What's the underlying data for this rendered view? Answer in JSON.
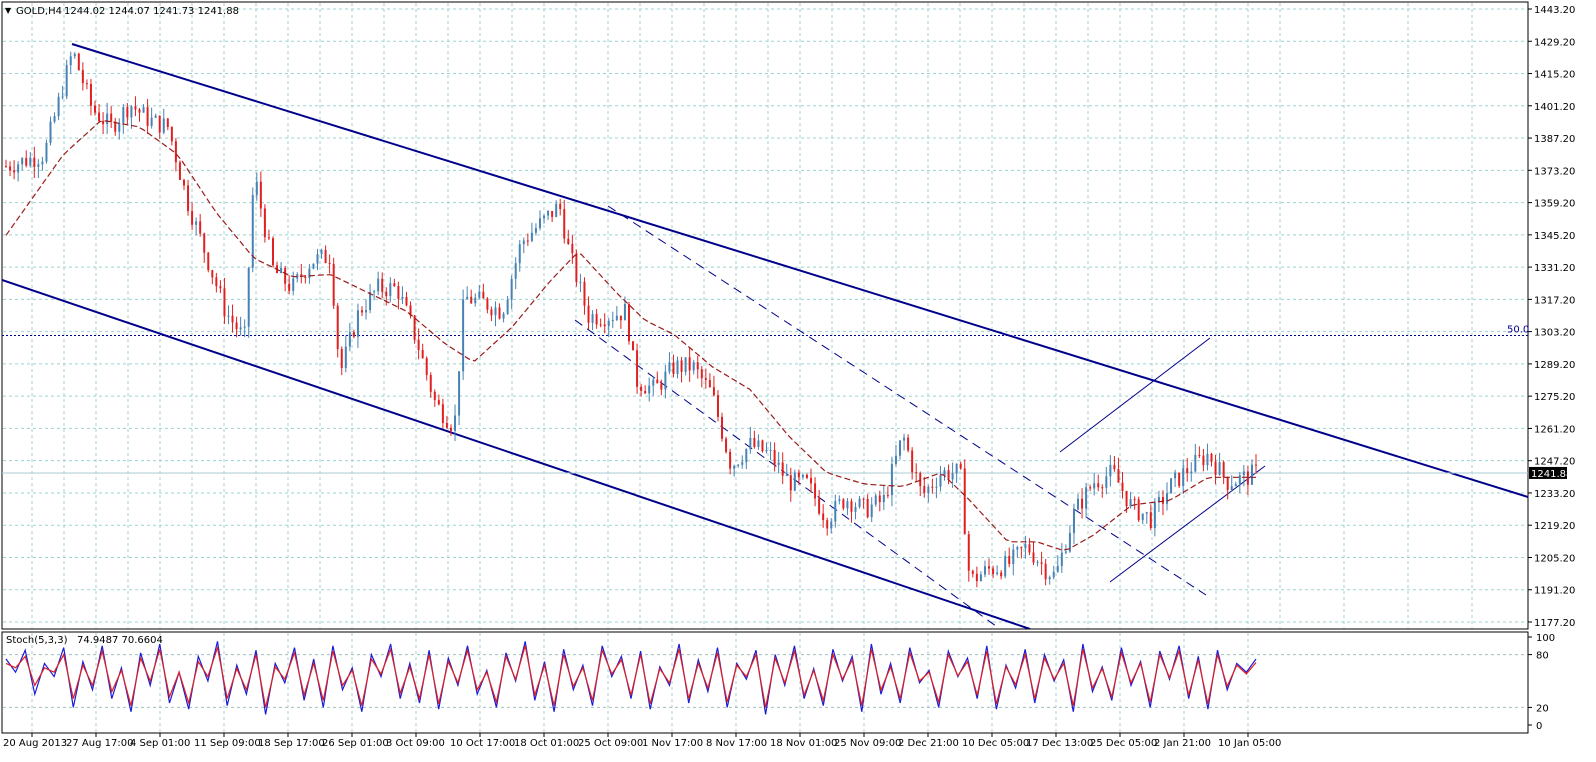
{
  "chart_data": [
    {
      "type": "candlestick",
      "title": "GOLD,H4",
      "ohlc_values": "1244.02 1244.07 1241.73 1241.88",
      "current_price": 1241.88,
      "current_price_label": "1241.88",
      "ylim": [
        1177.2,
        1443.2
      ],
      "y_ticks": [
        "1443.20",
        "1429.20",
        "1415.20",
        "1401.20",
        "1387.20",
        "1373.20",
        "1359.20",
        "1345.20",
        "1331.20",
        "1317.20",
        "1303.20",
        "1289.20",
        "1275.20",
        "1261.20",
        "1247.20",
        "1233.20",
        "1219.20",
        "1205.20",
        "1191.20",
        "1177.20"
      ],
      "x_ticks": [
        "20 Aug 2013",
        "27 Aug 17:00",
        "4 Sep 01:00",
        "11 Sep 09:00",
        "18 Sep 17:00",
        "26 Sep 01:00",
        "3 Oct 09:00",
        "10 Oct 17:00",
        "18 Oct 01:00",
        "25 Oct 09:00",
        "1 Nov 17:00",
        "8 Nov 17:00",
        "18 Nov 01:00",
        "25 Nov 09:00",
        "2 Dec 21:00",
        "10 Dec 05:00",
        "17 Dec 13:00",
        "25 Dec 05:00",
        "2 Jan 21:00",
        "10 Jan 05:00"
      ],
      "fib_level": {
        "label": "50.0",
        "price": 1301.5
      },
      "grid": true,
      "colors": {
        "bull": "#4682b4",
        "bear": "#e02020",
        "ma": "#9b1b1b",
        "channel": "#00008b",
        "grid": "#9fd2d2"
      },
      "price_path": [
        [
          0,
          1375
        ],
        [
          4,
          1380
        ],
        [
          7,
          1425
        ],
        [
          9,
          1400
        ],
        [
          11,
          1392
        ],
        [
          13,
          1402
        ],
        [
          15,
          1395
        ],
        [
          17,
          1392
        ],
        [
          19,
          1360
        ],
        [
          21,
          1336
        ],
        [
          23,
          1312
        ],
        [
          25,
          1300
        ],
        [
          26,
          1372
        ],
        [
          28,
          1330
        ],
        [
          30,
          1322
        ],
        [
          32,
          1334
        ],
        [
          34,
          1336
        ],
        [
          35,
          1285
        ],
        [
          37,
          1312
        ],
        [
          39,
          1322
        ],
        [
          41,
          1322
        ],
        [
          43,
          1300
        ],
        [
          45,
          1272
        ],
        [
          47,
          1262
        ],
        [
          48,
          1318
        ],
        [
          50,
          1316
        ],
        [
          52,
          1312
        ],
        [
          54,
          1342
        ],
        [
          56,
          1350
        ],
        [
          58,
          1358
        ],
        [
          59,
          1338
        ],
        [
          61,
          1310
        ],
        [
          63,
          1310
        ],
        [
          65,
          1312
        ],
        [
          66,
          1282
        ],
        [
          68,
          1278
        ],
        [
          70,
          1288
        ],
        [
          72,
          1288
        ],
        [
          74,
          1276
        ],
        [
          76,
          1245
        ],
        [
          78,
          1254
        ],
        [
          80,
          1250
        ],
        [
          82,
          1238
        ],
        [
          84,
          1237
        ],
        [
          86,
          1222
        ],
        [
          88,
          1231
        ],
        [
          90,
          1226
        ],
        [
          92,
          1230
        ],
        [
          94,
          1258
        ],
        [
          96,
          1232
        ],
        [
          98,
          1242
        ],
        [
          100,
          1242
        ],
        [
          101,
          1195
        ],
        [
          103,
          1200
        ],
        [
          105,
          1202
        ],
        [
          107,
          1210
        ],
        [
          109,
          1200
        ],
        [
          110,
          1197
        ],
        [
          112,
          1225
        ],
        [
          114,
          1238
        ],
        [
          116,
          1242
        ],
        [
          118,
          1227
        ],
        [
          120,
          1222
        ],
        [
          122,
          1236
        ],
        [
          124,
          1244
        ],
        [
          126,
          1250
        ],
        [
          128,
          1238
        ],
        [
          130,
          1240
        ],
        [
          131,
          1242
        ]
      ],
      "moving_average": [
        [
          0,
          1345
        ],
        [
          6,
          1380
        ],
        [
          10,
          1395
        ],
        [
          14,
          1392
        ],
        [
          18,
          1380
        ],
        [
          22,
          1355
        ],
        [
          26,
          1335
        ],
        [
          30,
          1327
        ],
        [
          34,
          1328
        ],
        [
          38,
          1320
        ],
        [
          42,
          1312
        ],
        [
          46,
          1298
        ],
        [
          49,
          1290
        ],
        [
          53,
          1305
        ],
        [
          57,
          1325
        ],
        [
          60,
          1338
        ],
        [
          64,
          1320
        ],
        [
          67,
          1308
        ],
        [
          70,
          1302
        ],
        [
          74,
          1288
        ],
        [
          78,
          1278
        ],
        [
          82,
          1258
        ],
        [
          86,
          1242
        ],
        [
          90,
          1237
        ],
        [
          94,
          1236
        ],
        [
          98,
          1242
        ],
        [
          101,
          1230
        ],
        [
          105,
          1212
        ],
        [
          108,
          1212
        ],
        [
          111,
          1208
        ],
        [
          114,
          1215
        ],
        [
          118,
          1228
        ],
        [
          122,
          1230
        ],
        [
          126,
          1240
        ],
        [
          131,
          1240
        ]
      ]
    },
    {
      "type": "line",
      "title": "Stoch(5,3,3)",
      "values_label": "74.9487 70.6604",
      "ylim": [
        0,
        100
      ],
      "y_ticks": [
        "100",
        "80",
        "20",
        "0"
      ],
      "levels": [
        20,
        80
      ],
      "series": [
        {
          "color": "#1c1cd6",
          "values": [
            75,
            60,
            85,
            35,
            70,
            55,
            88,
            20,
            72,
            40,
            90,
            30,
            65,
            15,
            82,
            45,
            92,
            25,
            60,
            18,
            78,
            50,
            95,
            22,
            68,
            35,
            85,
            12,
            70,
            48,
            88,
            28,
            75,
            20,
            90,
            40,
            65,
            15,
            80,
            55,
            92,
            30,
            70,
            25,
            85,
            18,
            76,
            45,
            90,
            35,
            62,
            20,
            82,
            50,
            95,
            28,
            72,
            15,
            86,
            40,
            68,
            22,
            90,
            55,
            78,
            30,
            84,
            18,
            66,
            45,
            92,
            25,
            74,
            38,
            88,
            20,
            70,
            52,
            85,
            12,
            80,
            45,
            90,
            30,
            64,
            22,
            86,
            50,
            78,
            15,
            92,
            35,
            70,
            25,
            88,
            48,
            62,
            20,
            84,
            55,
            76,
            30,
            90,
            18,
            68,
            42,
            86,
            25,
            80,
            50,
            74,
            15,
            92,
            38,
            66,
            28,
            88,
            45,
            72,
            20,
            84,
            52,
            90,
            30,
            78,
            18,
            85,
            40,
            70,
            60,
            75
          ]
        },
        {
          "color": "#e02020",
          "values": [
            70,
            65,
            78,
            45,
            65,
            60,
            80,
            30,
            68,
            45,
            84,
            38,
            62,
            22,
            76,
            50,
            86,
            32,
            60,
            25,
            72,
            55,
            88,
            30,
            64,
            40,
            80,
            20,
            66,
            52,
            82,
            34,
            70,
            28,
            84,
            45,
            62,
            22,
            75,
            58,
            86,
            36,
            66,
            30,
            80,
            24,
            72,
            48,
            85,
            40,
            60,
            26,
            78,
            52,
            90,
            34,
            68,
            22,
            80,
            44,
            65,
            28,
            85,
            58,
            74,
            34,
            80,
            24,
            64,
            48,
            86,
            30,
            70,
            42,
            82,
            26,
            68,
            55,
            80,
            20,
            76,
            48,
            84,
            34,
            62,
            28,
            80,
            52,
            74,
            22,
            86,
            40,
            66,
            30,
            82,
            50,
            60,
            26,
            80,
            56,
            72,
            34,
            84,
            24,
            66,
            46,
            80,
            30,
            76,
            52,
            70,
            22,
            86,
            42,
            64,
            32,
            82,
            48,
            70,
            26,
            80,
            54,
            84,
            34,
            74,
            24,
            80,
            44,
            68,
            58,
            71
          ]
        }
      ]
    }
  ]
}
